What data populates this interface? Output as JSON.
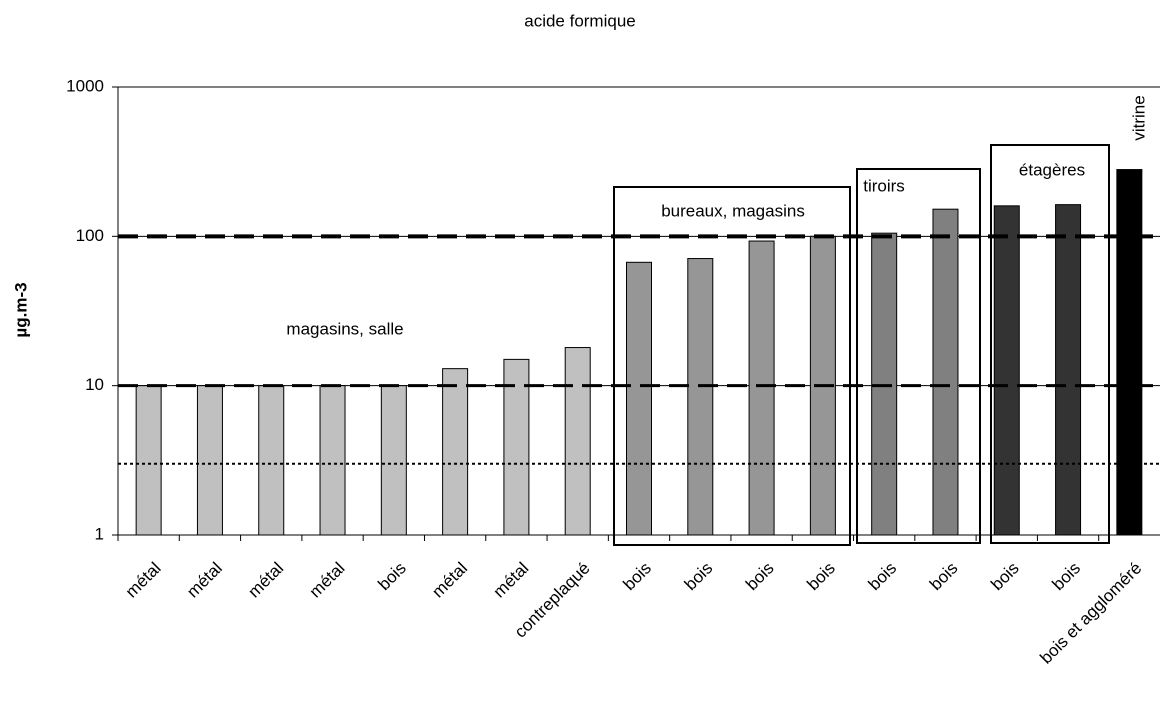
{
  "chart_data": {
    "type": "bar",
    "title": "acide formique",
    "y_label": "µg.m-3",
    "categories": [
      "métal",
      "métal",
      "métal",
      "métal",
      "bois",
      "métal",
      "métal",
      "contreplaqué",
      "bois",
      "bois",
      "bois",
      "bois",
      "bois",
      "bois",
      "bois",
      "bois",
      "bois et aggloméré"
    ],
    "values": [
      10,
      10,
      10,
      10,
      10,
      13,
      15,
      18,
      67,
      71,
      93,
      100,
      105,
      152,
      160,
      163,
      280
    ],
    "colors": [
      "#c0c0c0",
      "#c0c0c0",
      "#c0c0c0",
      "#c0c0c0",
      "#c0c0c0",
      "#c0c0c0",
      "#c0c0c0",
      "#c0c0c0",
      "#969696",
      "#969696",
      "#969696",
      "#969696",
      "#808080",
      "#808080",
      "#333333",
      "#333333",
      "#000000"
    ],
    "log_scale": true,
    "ylim": [
      1,
      1000
    ],
    "yticks": [
      1,
      10,
      100,
      1000
    ],
    "grid": true,
    "reference_lines": [
      {
        "value": 100,
        "style": "dashed"
      },
      {
        "value": 10,
        "style": "dashed"
      },
      {
        "value": 3,
        "style": "dotted"
      }
    ],
    "annotations": [
      "magasins, salle",
      "bureaux, magasins",
      "tiroirs",
      "étagères",
      "vitrine"
    ]
  }
}
